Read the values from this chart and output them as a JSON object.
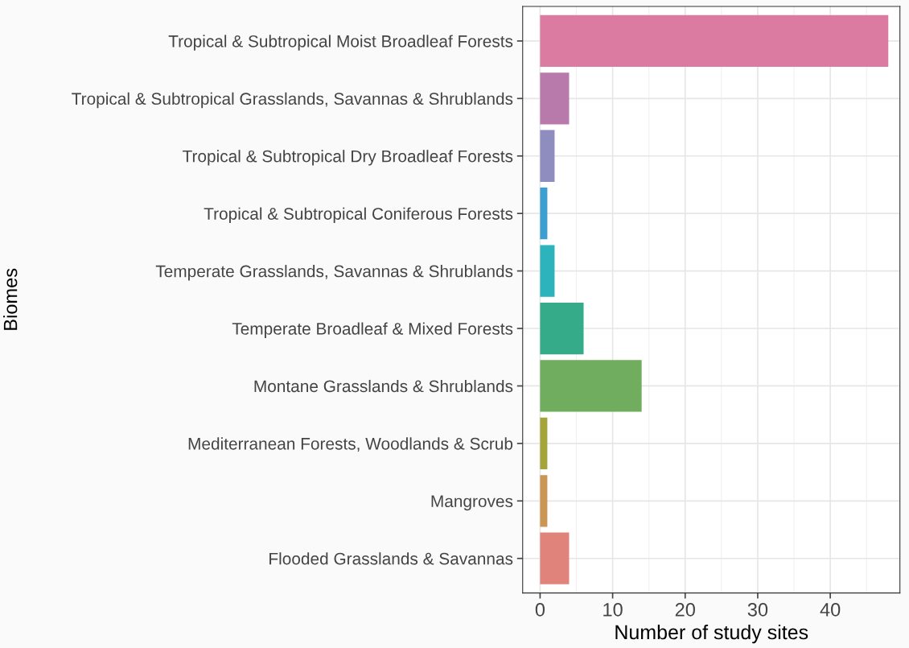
{
  "chart_data": {
    "type": "bar",
    "orientation": "horizontal",
    "xlabel": "Number of study sites",
    "ylabel": "Biomes",
    "categories": [
      "Tropical & Subtropical Moist Broadleaf Forests",
      "Tropical & Subtropical Grasslands, Savannas & Shrublands",
      "Tropical & Subtropical Dry Broadleaf Forests",
      "Tropical & Subtropical Coniferous Forests",
      "Temperate Grasslands, Savannas & Shrublands",
      "Temperate Broadleaf & Mixed Forests",
      "Montane Grasslands & Shrublands",
      "Mediterranean Forests, Woodlands & Scrub",
      "Mangroves",
      "Flooded Grasslands & Savannas"
    ],
    "values": [
      48,
      4,
      2,
      1,
      2,
      6,
      14,
      1,
      1,
      4
    ],
    "colors": [
      "#dc7ba1",
      "#b87aab",
      "#8f8cbf",
      "#3d9fd0",
      "#2db3bb",
      "#35ab8a",
      "#70ad5e",
      "#a5a43a",
      "#c99655",
      "#e0837a"
    ],
    "xlim": [
      -2.4,
      49.6
    ],
    "xticks": [
      0,
      10,
      20,
      30,
      40
    ],
    "grid": true
  }
}
